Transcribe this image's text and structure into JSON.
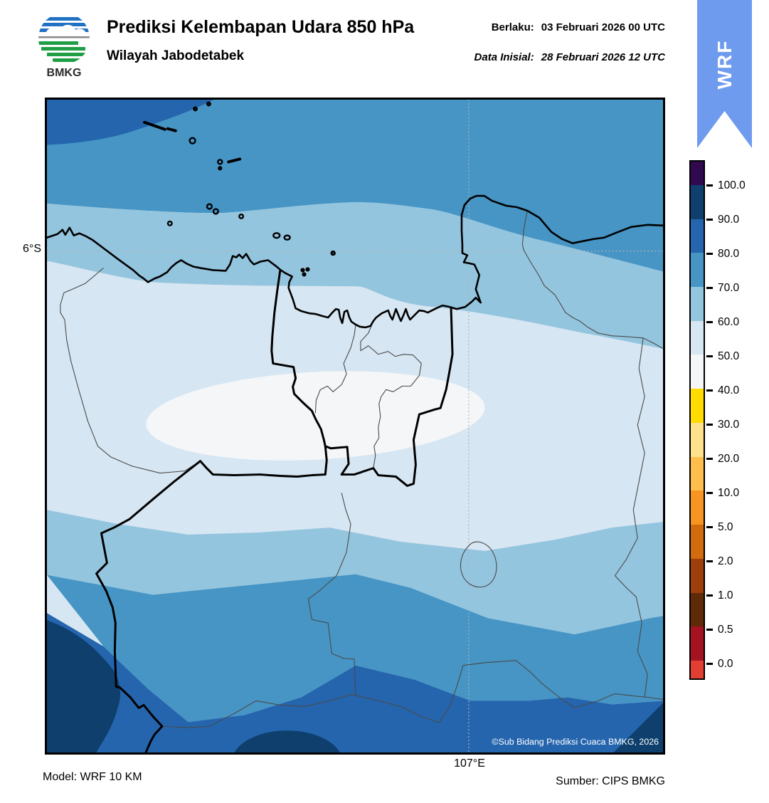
{
  "header": {
    "logo_text": "BMKG",
    "title": "Prediksi Kelembapan Udara 850 hPa",
    "subtitle": "Wilayah Jabodetabek",
    "valid_label": "Berlaku:",
    "valid_value": "03 Februari 2026 00 UTC",
    "init_label": "Data Inisial:",
    "init_value": "28 Februari 2026 12 UTC"
  },
  "ribbon": {
    "label": "WRF",
    "color": "#6f9bee"
  },
  "map": {
    "lat_label": "6°S",
    "lon_label": "107°E",
    "copyright": "©Sub Bidang Prediksi Cuaca BMKG, 2026"
  },
  "footer": {
    "model": "Model: WRF 10 KM",
    "source": "Sumber: CIPS BMKG"
  },
  "colorbar": {
    "tick_labels": [
      "100.0",
      "90.0",
      "80.0",
      "70.0",
      "60.0",
      "50.0",
      "40.0",
      "30.0",
      "20.0",
      "10.0",
      "5.0",
      "2.0",
      "1.0",
      "0.5",
      "0.0"
    ],
    "segment_colors": [
      "#31094e",
      "#0e3f6d",
      "#2565ae",
      "#4695c5",
      "#94c5de",
      "#d6e6f2",
      "#f4f6f8",
      "#ffdb00",
      "#fee18c",
      "#fdbe4d",
      "#f79422",
      "#d26a0e",
      "#9d3f0c",
      "#5e2a08",
      "#a31322",
      "#e23e31"
    ]
  },
  "bands": {
    "rh_90_100": "#0e3f6d",
    "rh_80_90": "#2565ae",
    "rh_70_80": "#4695c5",
    "rh_60_70": "#94c5de",
    "rh_50_60": "#d6e6f2",
    "rh_40_50": "#f4f6f8"
  },
  "logo_colors": {
    "blue": "#2272c3",
    "green": "#1f9e45",
    "gray": "#8a8a8a"
  }
}
